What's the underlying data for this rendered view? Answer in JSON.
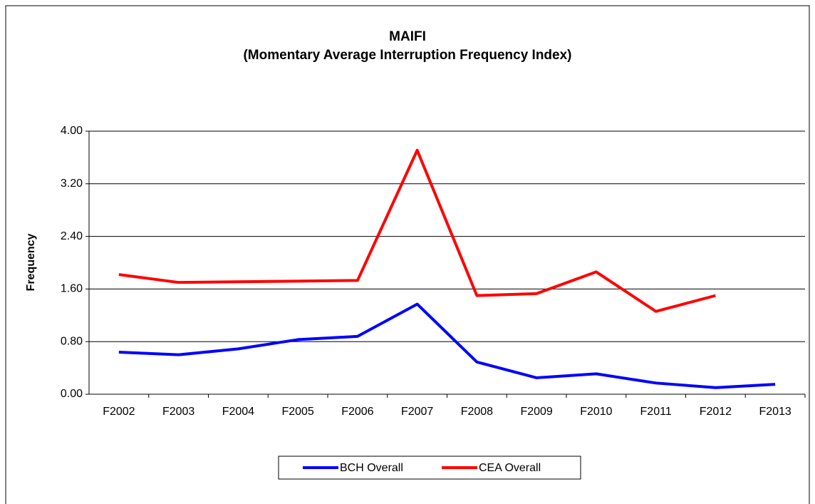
{
  "chart_data": {
    "type": "line",
    "title": "MAIFI",
    "subtitle": "(Momentary Average Interruption Frequency Index)",
    "y_label": "Frequency",
    "categories": [
      "F2002",
      "F2003",
      "F2004",
      "F2005",
      "F2006",
      "F2007",
      "F2008",
      "F2009",
      "F2010",
      "F2011",
      "F2012",
      "F2013"
    ],
    "series": [
      {
        "name": "BCH Overall",
        "color": "#0000ff",
        "values": [
          0.64,
          0.6,
          0.69,
          0.83,
          0.88,
          1.37,
          0.49,
          0.25,
          0.31,
          0.17,
          0.1,
          0.15
        ]
      },
      {
        "name": "CEA Overall",
        "color": "#ff0000",
        "values": [
          1.82,
          1.7,
          1.71,
          1.72,
          1.73,
          3.71,
          1.5,
          1.53,
          1.86,
          1.26,
          1.5,
          null
        ]
      }
    ],
    "ylim": [
      0,
      4
    ],
    "yticks": [
      {
        "value": 0,
        "label": "0.00"
      },
      {
        "value": 0.8,
        "label": "0.80"
      },
      {
        "value": 1.6,
        "label": "1.60"
      },
      {
        "value": 2.4,
        "label": "2.40"
      },
      {
        "value": 3.2,
        "label": "3.20"
      },
      {
        "value": 4,
        "label": "4.00"
      }
    ],
    "grid": true,
    "legend": "bottom"
  }
}
